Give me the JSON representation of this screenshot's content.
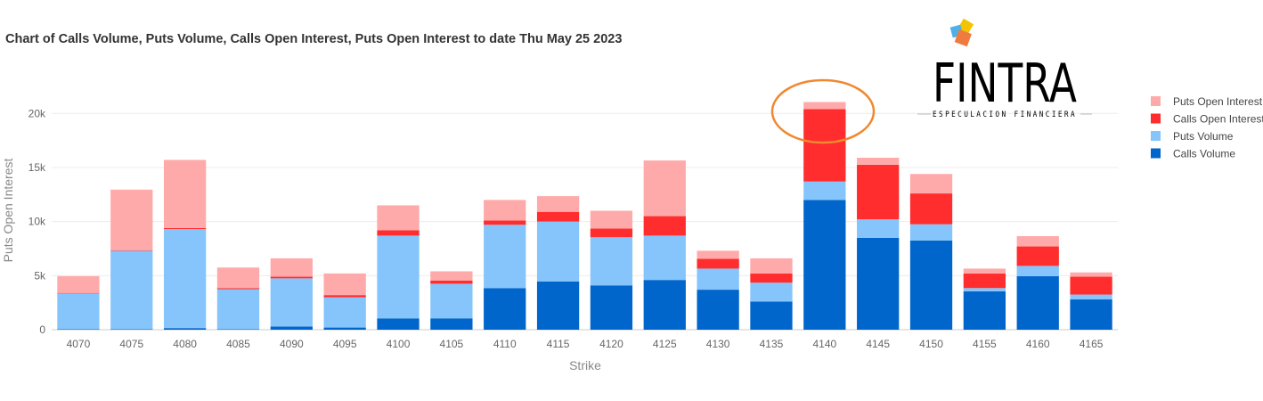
{
  "chart_data": {
    "type": "bar",
    "stacked": true,
    "title": "Chart of Calls Volume, Puts Volume, Calls Open Interest, Puts Open Interest to date Thu May 25 2023",
    "xlabel": "Strike",
    "ylabel": "Puts Open Interest",
    "ylim": [
      0,
      22000
    ],
    "ytick_labels": [
      "0",
      "5k",
      "10k",
      "15k",
      "20k"
    ],
    "ytick_values": [
      0,
      5000,
      10000,
      15000,
      20000
    ],
    "grid": true,
    "legend_position": "right",
    "categories": [
      "4070",
      "4075",
      "4080",
      "4085",
      "4090",
      "4095",
      "4100",
      "4105",
      "4110",
      "4115",
      "4120",
      "4125",
      "4130",
      "4135",
      "4140",
      "4145",
      "4150",
      "4155",
      "4160",
      "4165"
    ],
    "series": [
      {
        "name": "Calls Volume",
        "color": "#0066cc",
        "values": [
          50,
          50,
          150,
          50,
          300,
          200,
          1050,
          1050,
          3850,
          4450,
          4100,
          4600,
          3700,
          2600,
          12000,
          8500,
          8250,
          3550,
          4950,
          2800
        ]
      },
      {
        "name": "Puts Volume",
        "color": "#85c5fc",
        "values": [
          3300,
          7250,
          9150,
          3700,
          4450,
          2800,
          7650,
          3200,
          5850,
          5550,
          4450,
          4100,
          1950,
          1750,
          1700,
          1700,
          1500,
          300,
          950,
          450
        ]
      },
      {
        "name": "Calls Open Interest",
        "color": "#ff2d2d",
        "values": [
          50,
          50,
          100,
          100,
          150,
          200,
          500,
          300,
          400,
          900,
          800,
          1800,
          900,
          850,
          6700,
          5050,
          2850,
          1350,
          1800,
          1650
        ]
      },
      {
        "name": "Puts Open Interest",
        "color": "#ffaaaa",
        "values": [
          1550,
          5600,
          6300,
          1900,
          1700,
          2000,
          2300,
          850,
          1900,
          1450,
          1650,
          5150,
          750,
          1400,
          650,
          650,
          1800,
          450,
          950,
          400
        ]
      }
    ],
    "highlight": {
      "category": "4140",
      "color": "#f0882e"
    }
  },
  "logo": {
    "wordmark": "FINTRA",
    "tagline": "ESPECULACION FINANCIERA",
    "colors": [
      "#f5c400",
      "#4fb0e8",
      "#f07b3f"
    ]
  }
}
